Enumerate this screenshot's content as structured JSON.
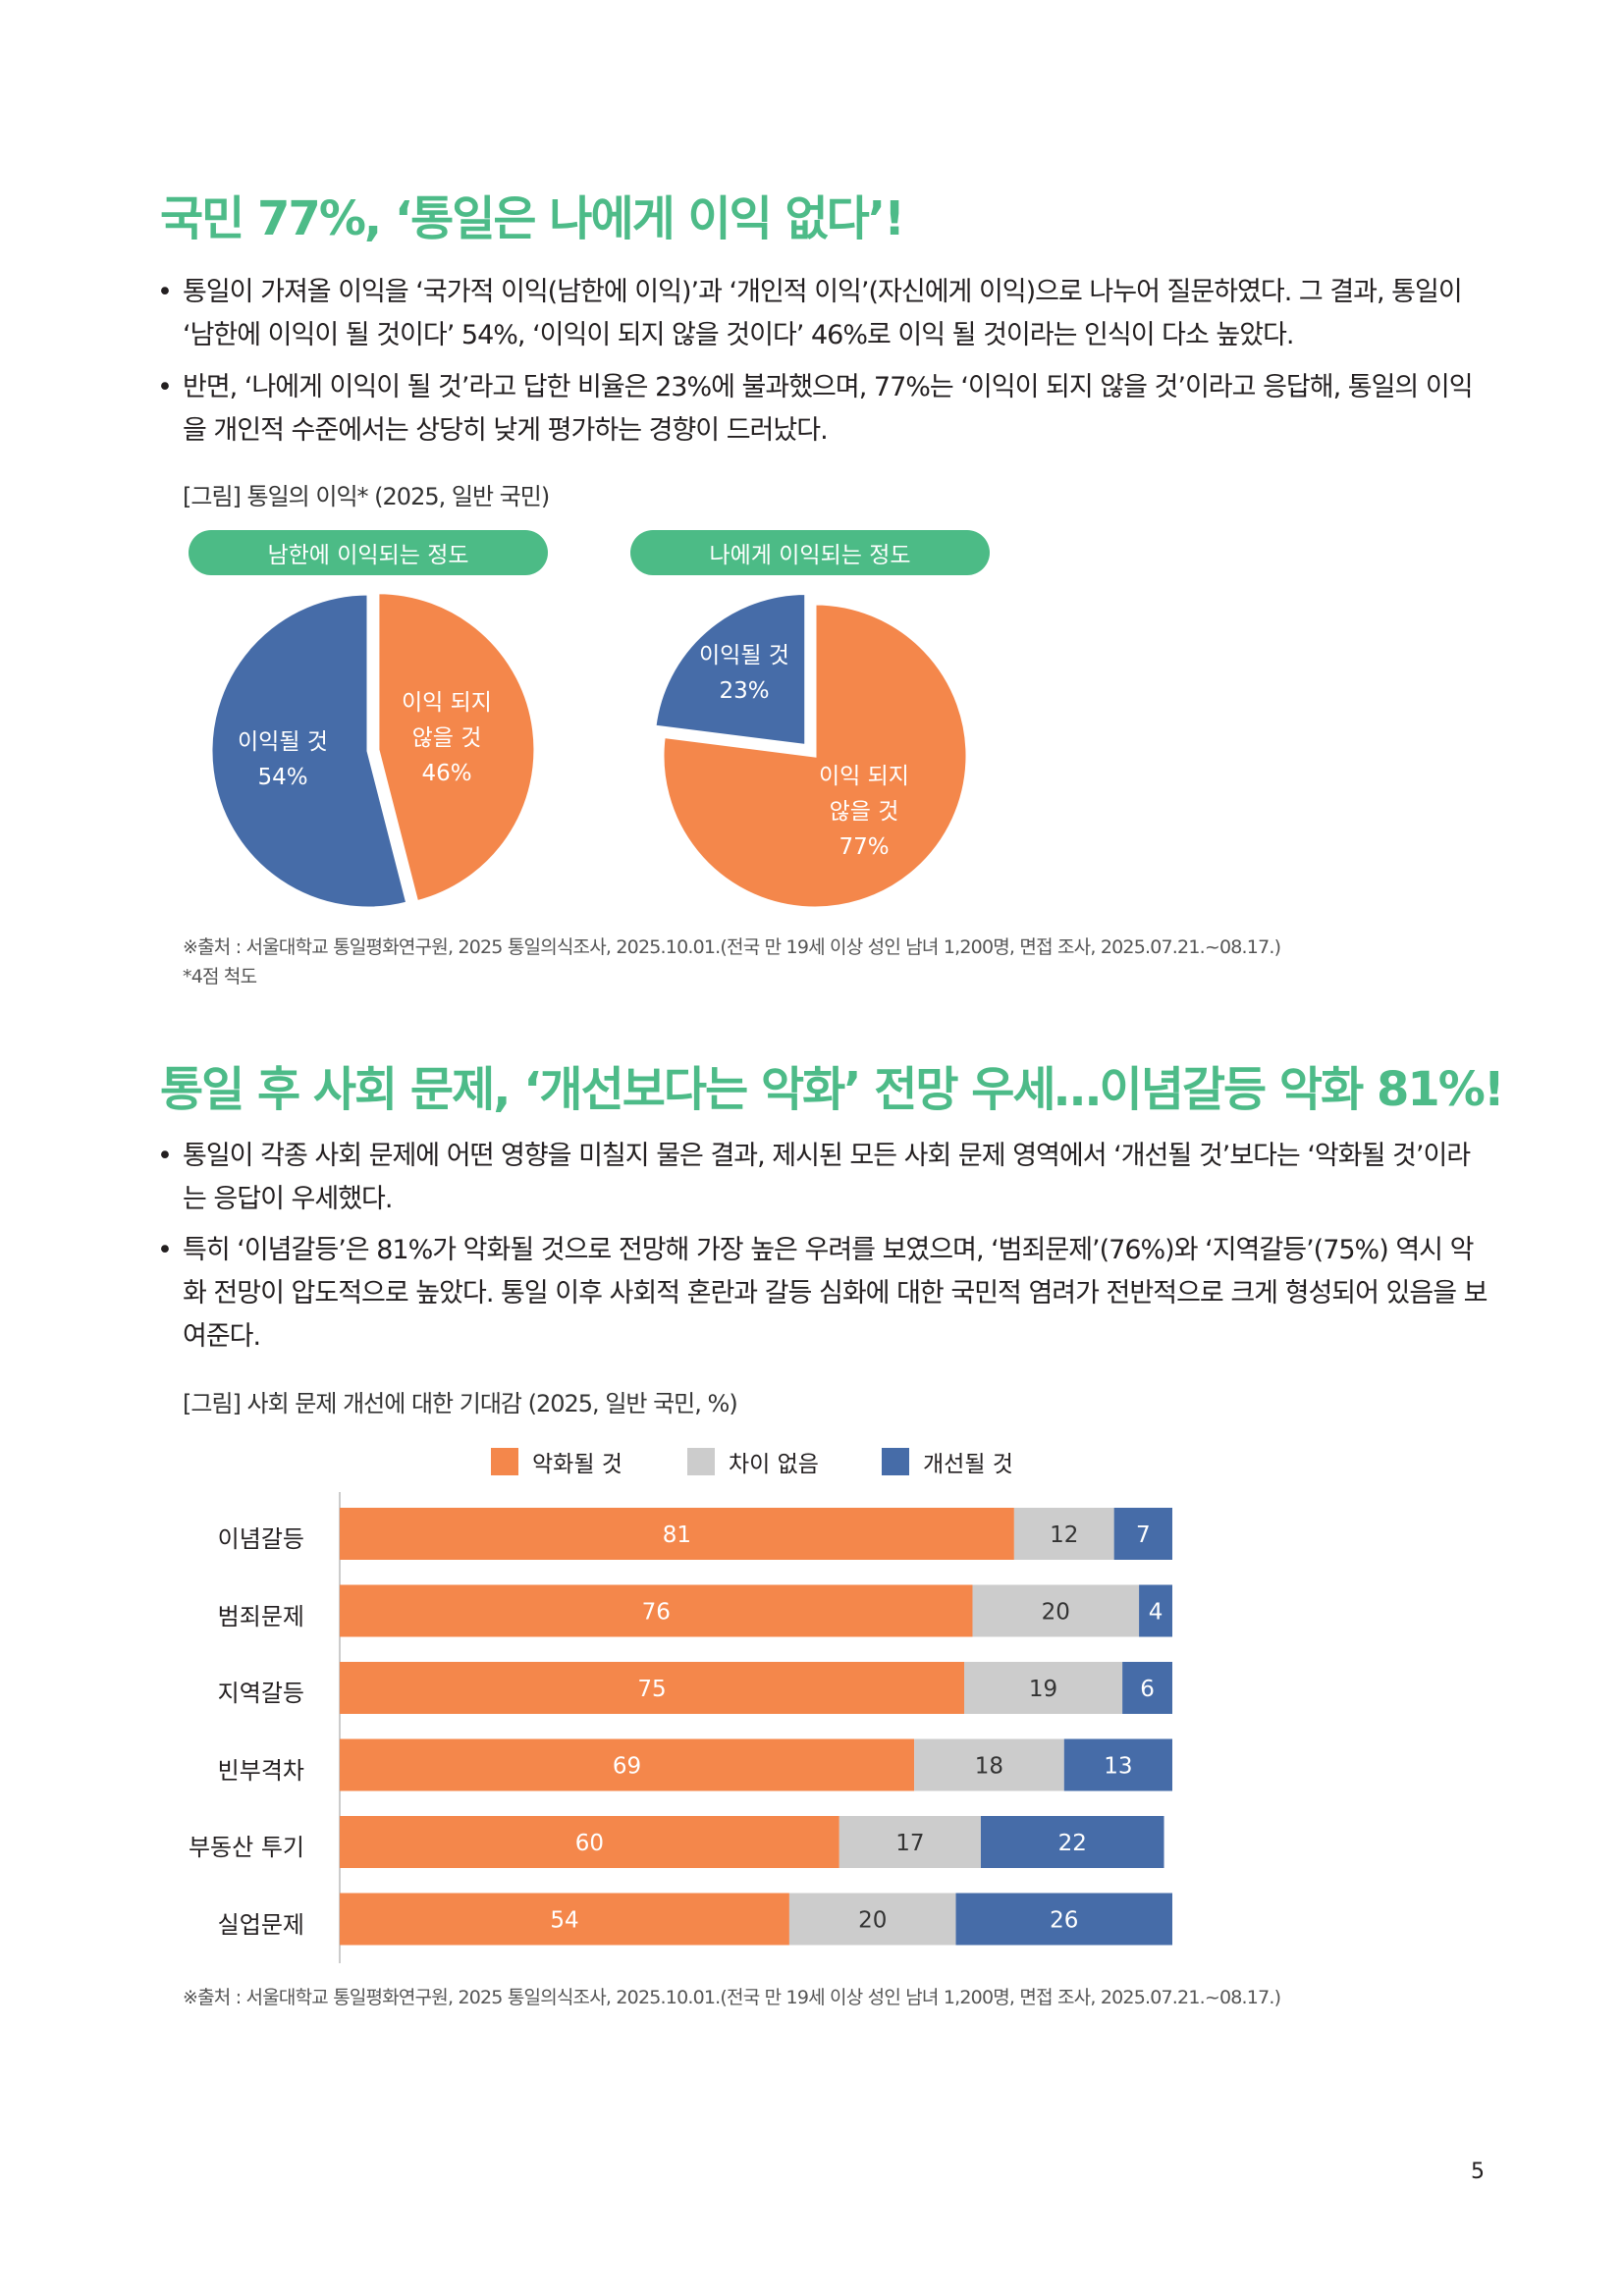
{
  "section1": {
    "title": "국민 77%, ‘통일은 나에게 이익 없다’!",
    "bullets": [
      "통일이 가져올 이익을 ‘국가적 이익(남한에 이익)’과 ‘개인적 이익’(자신에게 이익)으로 나누어 질문하였다. 그 결과, 통일이 ‘남한에 이익이 될 것이다’ 54%, ‘이익이 되지 않을 것이다’ 46%로 이익 될 것이라는 인식이 다소 높았다.",
      "반면, ‘나에게 이익이 될 것’라고 답한 비율은 23%에 불과했으며, 77%는 ‘이익이 되지 않을 것’이라고 응답해, 통일의 이익을 개인적 수준에서는 상당히 낮게 평가하는 경향이 드러났다."
    ],
    "figure_caption": "[그림] 통일의 이익* (2025, 일반 국민)",
    "source": "※출처 : 서울대학교 통일평화연구원, 2025 통일의식조사, 2025.10.01.(전국 만 19세 이상 성인 남녀 1,200명, 면접 조사, 2025.07.21.~08.17.)",
    "footnote": "*4점 척도"
  },
  "section2": {
    "title": "통일 후 사회 문제, ‘개선보다는 악화’ 전망 우세…이념갈등 악화 81%!",
    "bullets": [
      "통일이 각종 사회 문제에 어떤 영향을 미칠지 물은 결과, 제시된 모든 사회 문제 영역에서 ‘개선될 것’보다는 ‘악화될 것’이라는 응답이 우세했다.",
      "특히 ‘이념갈등’은 81%가 악화될 것으로 전망해 가장 높은 우려를 보였으며, ‘범죄문제’(76%)와 ‘지역갈등’(75%) 역시 악화 전망이 압도적으로 높았다. 통일 이후 사회적 혼란과 갈등 심화에 대한 국민적 염려가 전반적으로 크게 형성되어 있음을 보여준다."
    ],
    "figure_caption": "[그림] 사회 문제 개선에 대한 기대감 (2025, 일반 국민, %)",
    "source": "※출처 : 서울대학교 통일평화연구원, 2025 통일의식조사, 2025.10.01.(전국 만 19세 이상 성인 남녀 1,200명, 면접 조사, 2025.07.21.~08.17.)"
  },
  "page_number": "5",
  "colors": {
    "green": "#4cbb86",
    "orange": "#f4874b",
    "blue": "#466ca8",
    "gray": "#cccccc"
  },
  "chart_data": [
    {
      "type": "pie",
      "title": "남한에 이익되는 정도",
      "slices": [
        {
          "label": "이익 되지 않을 것",
          "value": 46,
          "label_text": "46%",
          "color": "#f4874b"
        },
        {
          "label": "이익될 것",
          "value": 54,
          "label_text": "54%",
          "color": "#466ca8"
        }
      ]
    },
    {
      "type": "pie",
      "title": "나에게 이익되는 정도",
      "slices": [
        {
          "label": "이익 되지 않을 것",
          "value": 77,
          "label_text": "77%",
          "color": "#f4874b"
        },
        {
          "label": "이익될 것",
          "value": 23,
          "label_text": "23%",
          "color": "#466ca8"
        }
      ]
    },
    {
      "type": "bar",
      "orientation": "horizontal",
      "stacked": true,
      "categories": [
        "이념갈등",
        "범죄문제",
        "지역갈등",
        "빈부격차",
        "부동산 투기",
        "실업문제"
      ],
      "series": [
        {
          "name": "악화될 것",
          "color": "#f4874b",
          "values": [
            81,
            76,
            75,
            69,
            60,
            54
          ]
        },
        {
          "name": "차이 없음",
          "color": "#cccccc",
          "values": [
            12,
            20,
            19,
            18,
            17,
            20
          ]
        },
        {
          "name": "개선될 것",
          "color": "#466ca8",
          "values": [
            7,
            4,
            6,
            13,
            22,
            26
          ]
        }
      ],
      "xlim": [
        0,
        100
      ],
      "legend": "top"
    }
  ]
}
